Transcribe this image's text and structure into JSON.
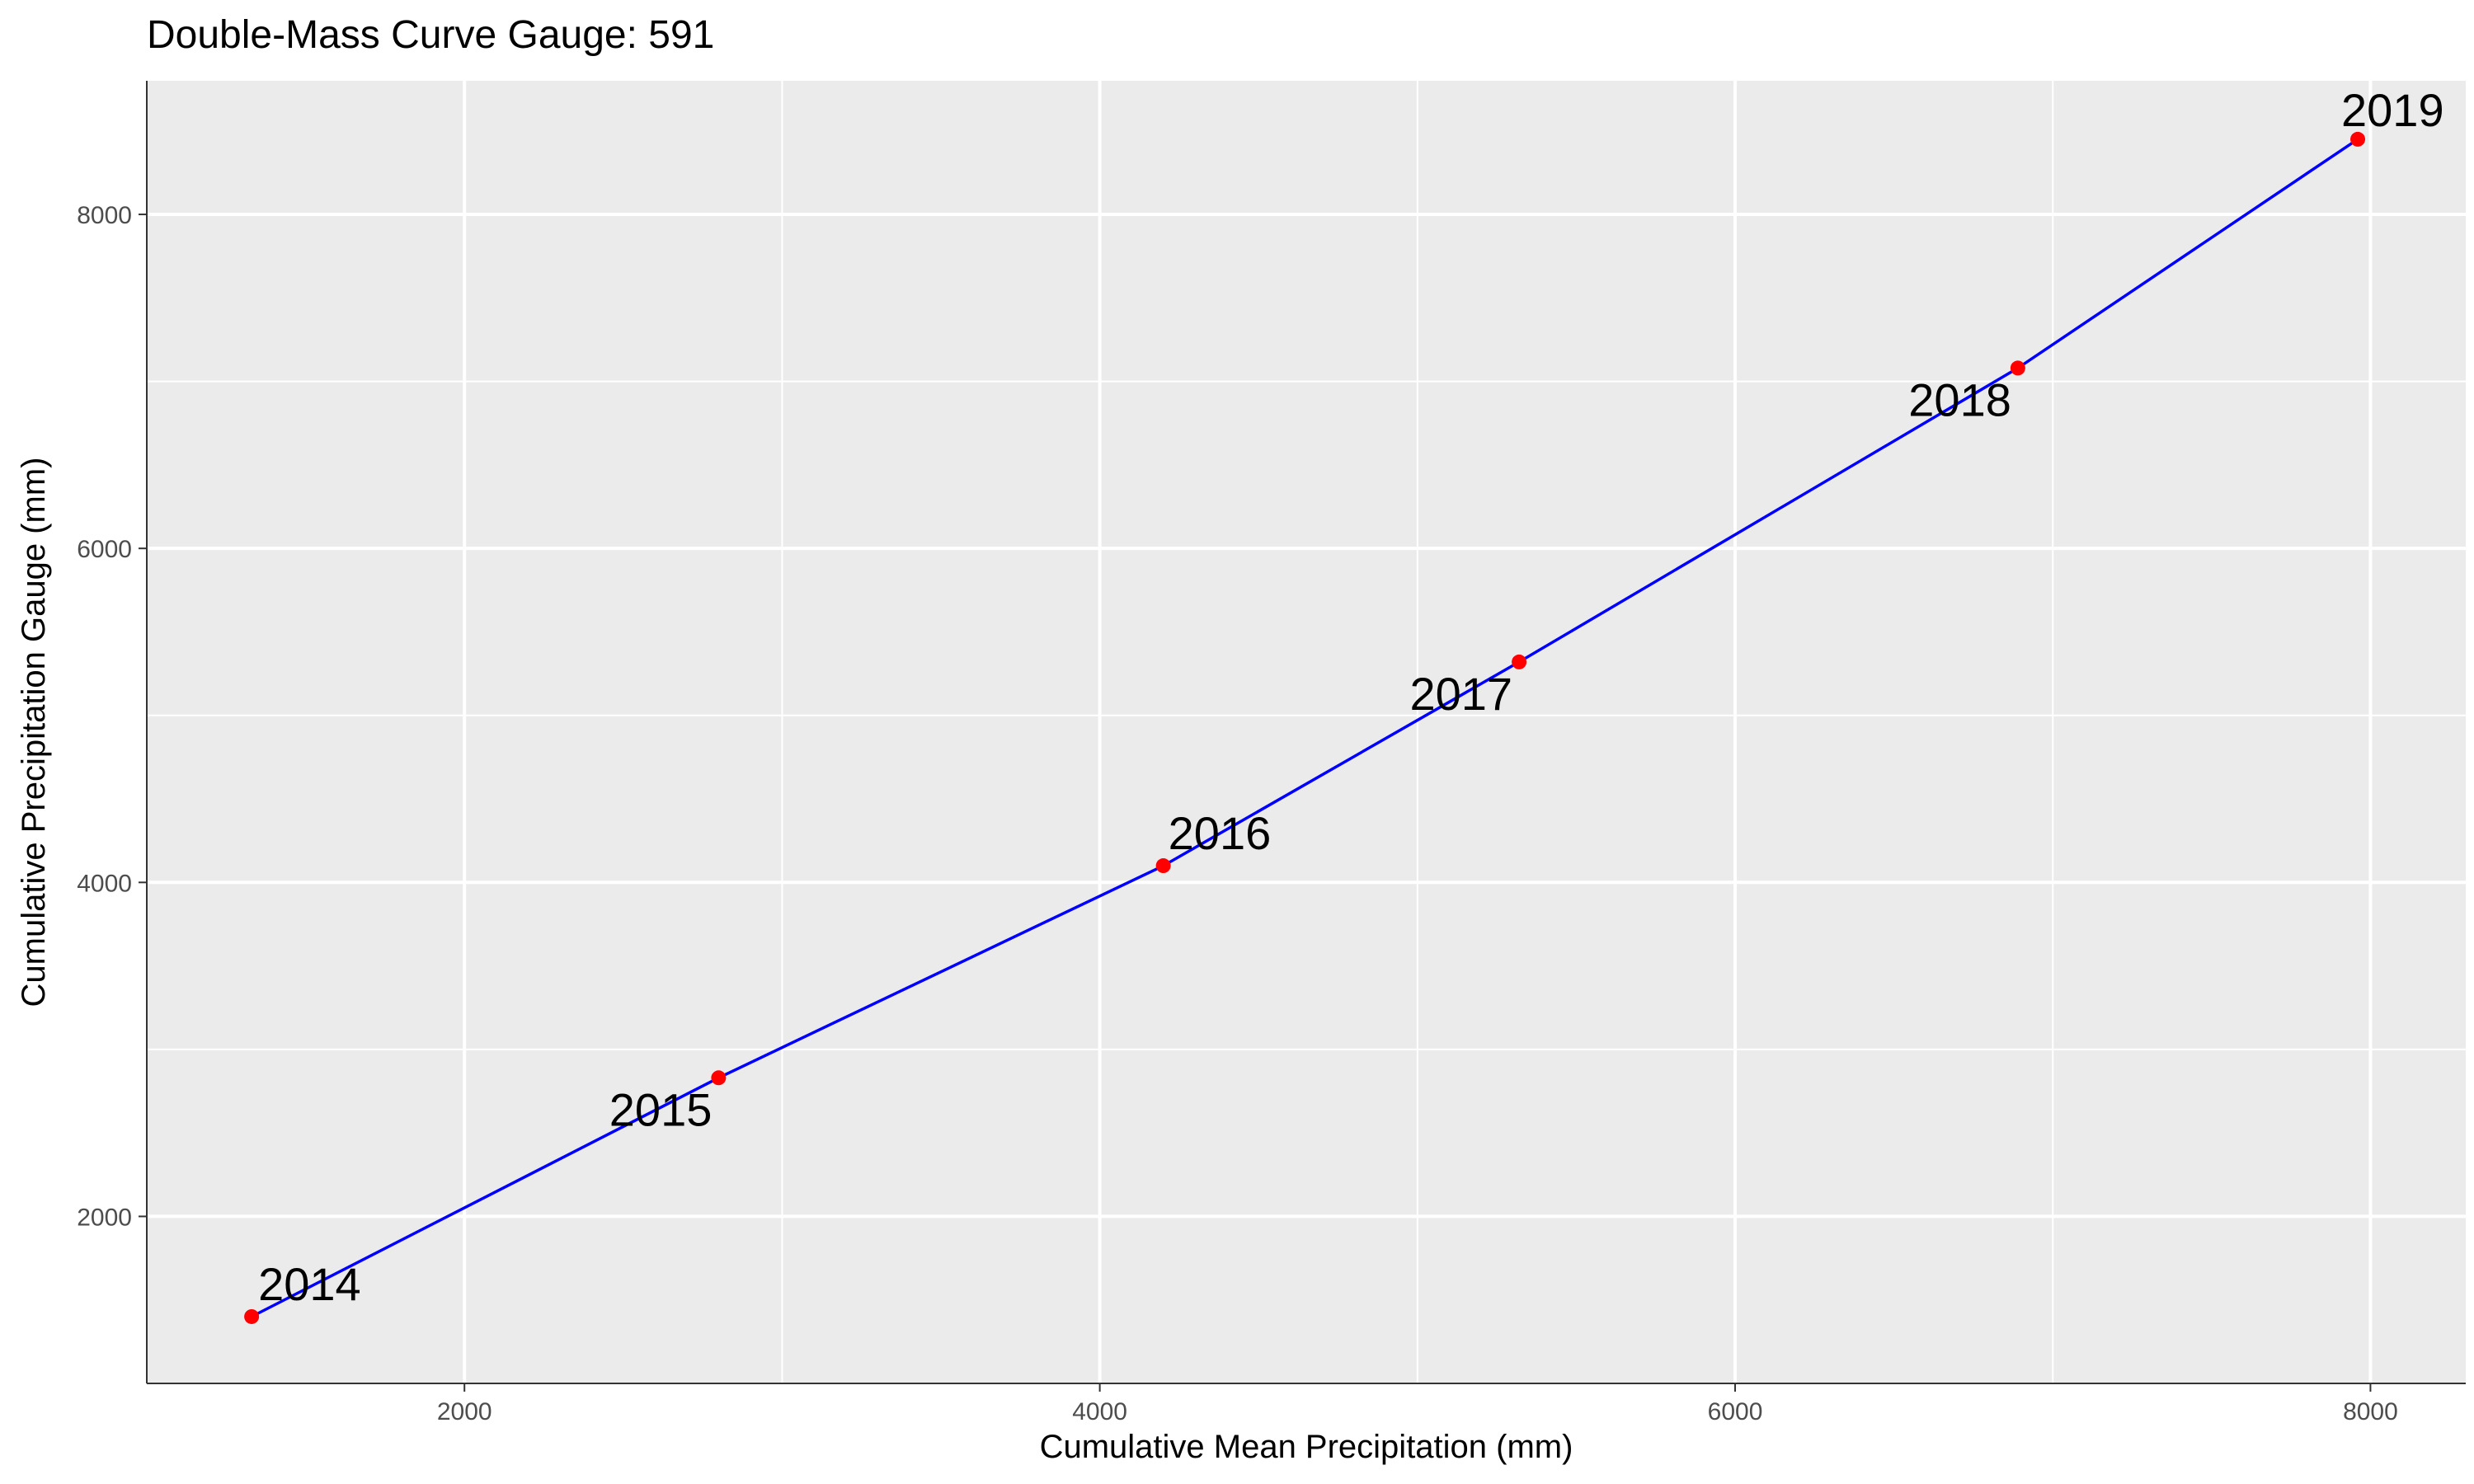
{
  "chart_data": {
    "type": "line",
    "title": "Double-Mass Curve Gauge: 591",
    "xlabel": "Cumulative Mean Precipitation (mm)",
    "ylabel": "Cumulative Precipitation Gauge (mm)",
    "xlim": [
      1000,
      8300
    ],
    "ylim": [
      1000,
      8800
    ],
    "x_ticks": [
      2000,
      4000,
      6000,
      8000
    ],
    "y_ticks": [
      2000,
      4000,
      6000,
      8000
    ],
    "x_tick_labels": [
      "2000",
      "4000",
      "6000",
      "8000"
    ],
    "y_tick_labels": [
      "2000",
      "4000",
      "6000",
      "8000"
    ],
    "grid": true,
    "legend": "none",
    "line_color": "#0000ff",
    "point_color": "#ff0000",
    "panel_background": "#ebebeb",
    "series": [
      {
        "x": [
          1330,
          2800,
          4200,
          5320,
          6890,
          7960
        ],
        "y": [
          1400,
          2830,
          4100,
          5320,
          7080,
          8450
        ],
        "labels": [
          "2014",
          "2015",
          "2016",
          "2017",
          "2018",
          "2019"
        ]
      }
    ]
  }
}
